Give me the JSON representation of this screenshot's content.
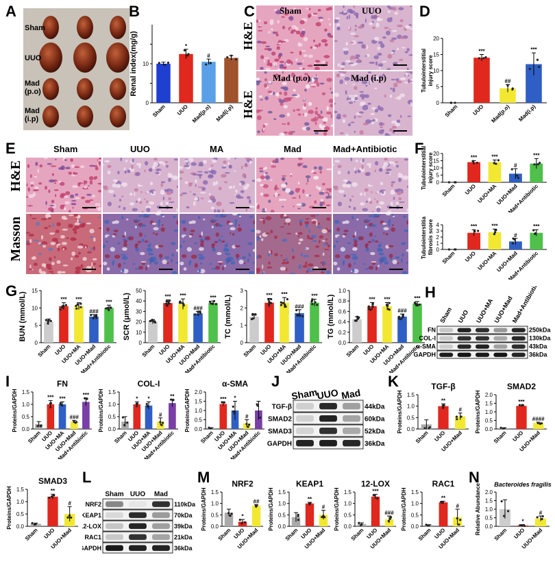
{
  "panels": {
    "A": {
      "letter": "A",
      "rows": [
        "Sham",
        "UUO",
        "Mad (p.o)",
        "Mad (i.p)"
      ]
    },
    "B": {
      "letter": "B"
    },
    "C": {
      "letter": "C",
      "stain": "H&E",
      "cols": [
        "Sham",
        "UUO",
        "Mad (p.o)",
        "Mad (i.p)"
      ]
    },
    "D": {
      "letter": "D"
    },
    "E": {
      "letter": "E",
      "cols": [
        "Sham",
        "UUO",
        "MA",
        "Mad",
        "Mad+Antibiotic"
      ],
      "rows": [
        "H&E",
        "Masson"
      ]
    },
    "F": {
      "letter": "F"
    },
    "G": {
      "letter": "G"
    },
    "H": {
      "letter": "H",
      "lanes": [
        "Sham",
        "UUO",
        "UUO+MA",
        "UUO+Mad",
        "Mad+Antibiotic"
      ],
      "bands": [
        "FN",
        "COL-I",
        "α-SMA",
        "GAPDH"
      ],
      "kda": [
        "250kDa",
        "130kDa",
        "43kDa",
        "36kDa"
      ]
    },
    "I": {
      "letter": "I"
    },
    "J": {
      "letter": "J",
      "lanes": [
        "Sham",
        "UUO",
        "Mad"
      ],
      "bands": [
        "TGF-β",
        "SMAD2",
        "SMAD3",
        "GAPDH"
      ],
      "kda": [
        "44kDa",
        "60kDa",
        "52kDa",
        "36kDa"
      ]
    },
    "K": {
      "letter": "K"
    },
    "L": {
      "letter": "L",
      "lanes": [
        "Sham",
        "UUO",
        "Mad"
      ],
      "bands": [
        "NRF2",
        "KEAP1",
        "12-LOX",
        "RAC1",
        "GAPDH"
      ],
      "kda": [
        "110kDa",
        "70kDa",
        "39kDa",
        "21kDa",
        "36kDa"
      ]
    },
    "M": {
      "letter": "M"
    },
    "N": {
      "letter": "N"
    }
  },
  "colors": {
    "sham": "#c8c8c8",
    "uuo": "#e0281e",
    "ma": "#f2e832",
    "mad": "#2f5fc4",
    "abx": "#4fc04a",
    "ma_purple": "#7a3fa6",
    "he_pink": "#d98aa8",
    "masson_blue": "#4a6fb3"
  },
  "chart_data": [
    {
      "id": "B",
      "type": "bar",
      "title": "",
      "ylabel": "Renal index(mg/g)",
      "categories": [
        "Sham",
        "UUO",
        "Mad(p.o)",
        "Mad(i.p)"
      ],
      "values": [
        10,
        12.5,
        10.5,
        11.5
      ],
      "errors": [
        0.4,
        1.2,
        0.7,
        0.6
      ],
      "colors": [
        "#1f3fd0",
        "#e0281e",
        "#5aa0e8",
        "#a0522d"
      ],
      "sig": [
        "",
        "*",
        "#",
        ""
      ],
      "yticks": [
        0,
        5,
        10,
        15
      ],
      "ylim": [
        0,
        20
      ],
      "ticklabels": [
        "0",
        "",
        "10",
        ""
      ]
    },
    {
      "id": "D",
      "type": "bar",
      "ylabel": "Tubulointerstitial injury score",
      "categories": [
        "Sham",
        "UUO",
        "Mad(p.o)",
        "Mad(i.p)"
      ],
      "values": [
        0,
        14,
        4.5,
        12
      ],
      "errors": [
        0,
        1,
        1.2,
        3.5
      ],
      "colors": [
        "#aaaaaa",
        "#e0281e",
        "#f2e832",
        "#2f5fc4"
      ],
      "sig": [
        "",
        "***",
        "##",
        "***"
      ],
      "yticks": [
        0,
        5,
        10,
        15,
        20
      ],
      "ylim": [
        0,
        20
      ],
      "ticklabels": [
        "0",
        "5",
        "10",
        "15",
        "20"
      ]
    },
    {
      "id": "F1",
      "type": "bar",
      "ylabel": "Tubulointerstitial injury score",
      "categories": [
        "Sham",
        "UUO",
        "UUO+MA",
        "UUO+Mad",
        "Mad+Antibiotic"
      ],
      "values": [
        0,
        14,
        14,
        6,
        13
      ],
      "errors": [
        0,
        1,
        1.5,
        3.5,
        3.5
      ],
      "colors": [
        "#cccccc",
        "#e0281e",
        "#f2e832",
        "#2f5fc4",
        "#4fc04a"
      ],
      "sig": [
        "",
        "***",
        "***",
        "#",
        "***"
      ],
      "yticks": [
        0,
        5,
        10,
        15,
        20
      ],
      "ylim": [
        0,
        20
      ],
      "ticklabels": [
        "0",
        "5",
        "10",
        "15",
        "20"
      ]
    },
    {
      "id": "F2",
      "type": "bar",
      "ylabel": "Tubulointerstitial fibrosis score",
      "categories": [
        "Sham",
        "UUO",
        "UUO+MA",
        "UUO+Mad",
        "Mad+Antibiotic"
      ],
      "values": [
        0,
        2.7,
        2.8,
        1.3,
        2.7
      ],
      "errors": [
        0,
        0.5,
        0.5,
        0.5,
        0.5
      ],
      "colors": [
        "#cccccc",
        "#e0281e",
        "#f2e832",
        "#2f5fc4",
        "#4fc04a"
      ],
      "sig": [
        "",
        "***",
        "***",
        "#",
        "***"
      ],
      "yticks": [
        0,
        1,
        2,
        3,
        4
      ],
      "ylim": [
        0,
        4
      ],
      "ticklabels": [
        "0",
        "1",
        "2",
        "3",
        "4"
      ]
    },
    {
      "id": "G1",
      "type": "bar",
      "ylabel": "BUN (mmol/L)",
      "categories": [
        "Sham",
        "UUO",
        "UUO+MA",
        "UUO+Mad",
        "Mad+Antibiotic"
      ],
      "values": [
        6,
        10.5,
        10.5,
        7.5,
        10
      ],
      "errors": [
        0.8,
        1,
        1,
        0.6,
        0.8
      ],
      "colors": [
        "#cccccc",
        "#e0281e",
        "#f2e832",
        "#2f5fc4",
        "#4fc04a"
      ],
      "sig": [
        "",
        "***",
        "***",
        "###",
        "***"
      ],
      "yticks": [
        0,
        5,
        10,
        15
      ],
      "ylim": [
        0,
        15
      ],
      "ticklabels": [
        "0",
        "5",
        "10",
        "15"
      ]
    },
    {
      "id": "G2",
      "type": "bar",
      "ylabel": "SCR (μmol/L)",
      "categories": [
        "Sham",
        "UUO",
        "UUO+MA",
        "UUO+Mad",
        "Mad+Antibiotic"
      ],
      "values": [
        20,
        38,
        37,
        28,
        38
      ],
      "errors": [
        2,
        3,
        5,
        2,
        2
      ],
      "colors": [
        "#cccccc",
        "#e0281e",
        "#f2e832",
        "#2f5fc4",
        "#4fc04a"
      ],
      "sig": [
        "",
        "***",
        "***",
        "###",
        "***"
      ],
      "yticks": [
        0,
        10,
        20,
        30,
        40,
        50
      ],
      "ylim": [
        0,
        50
      ],
      "ticklabels": [
        "0",
        "10",
        "20",
        "30",
        "40",
        "50"
      ]
    },
    {
      "id": "G3",
      "type": "bar",
      "ylabel": "TC (mmol/L)",
      "categories": [
        "Sham",
        "UUO",
        "UUO+MA",
        "UUO+Mad",
        "Mad+Antibiotic"
      ],
      "values": [
        1.5,
        2.3,
        2.3,
        1.7,
        2.3
      ],
      "errors": [
        0.15,
        0.25,
        0.3,
        0.2,
        0.2
      ],
      "colors": [
        "#cccccc",
        "#e0281e",
        "#f2e832",
        "#2f5fc4",
        "#4fc04a"
      ],
      "sig": [
        "",
        "***",
        "***",
        "###",
        "***"
      ],
      "yticks": [
        0,
        1,
        2,
        3
      ],
      "ylim": [
        0,
        3
      ],
      "ticklabels": [
        "0",
        "1",
        "2",
        "3"
      ]
    },
    {
      "id": "G4",
      "type": "bar",
      "ylabel": "TG (mmol/L)",
      "categories": [
        "Sham",
        "UUO",
        "UUO+MA",
        "UUO+Mad",
        "Mad+Antibiotic"
      ],
      "values": [
        0.45,
        0.7,
        0.7,
        0.5,
        0.75
      ],
      "errors": [
        0.05,
        0.07,
        0.07,
        0.05,
        0.04
      ],
      "colors": [
        "#cccccc",
        "#e0281e",
        "#f2e832",
        "#2f5fc4",
        "#4fc04a"
      ],
      "sig": [
        "",
        "***",
        "***",
        "###",
        "***"
      ],
      "yticks": [
        0,
        0.2,
        0.4,
        0.6,
        0.8,
        1.0
      ],
      "ylim": [
        0,
        1.0
      ],
      "ticklabels": [
        "0.0",
        "0.2",
        "0.4",
        "0.6",
        "0.8",
        "1.0"
      ]
    },
    {
      "id": "I1",
      "type": "bar",
      "title": "FN",
      "ylabel": "Proteins/GAPDH",
      "categories": [
        "Sham",
        "UUO",
        "UUO+MA",
        "UUO+Mad",
        "Mad+Antibiotic"
      ],
      "values": [
        0.2,
        1.0,
        1.0,
        0.3,
        1.1
      ],
      "errors": [
        0.1,
        0.15,
        0.1,
        0.05,
        0.15
      ],
      "colors": [
        "#aaaaaa",
        "#e0281e",
        "#2f5fc4",
        "#f2e832",
        "#7a3fa6"
      ],
      "sig": [
        "",
        "***",
        "***",
        "###",
        "***"
      ],
      "yticks": [
        0,
        0.5,
        1.0,
        1.5
      ],
      "ylim": [
        0,
        1.5
      ],
      "ticklabels": [
        "0.0",
        "0.5",
        "1.0",
        "1.5"
      ]
    },
    {
      "id": "I2",
      "type": "bar",
      "title": "COL-I",
      "ylabel": "Proteins/GAPDH",
      "categories": [
        "Sham",
        "UUO",
        "UUO+MA",
        "UUO+Mad",
        "Mad+Antibiotic"
      ],
      "values": [
        0.3,
        1.0,
        0.95,
        0.3,
        1.05
      ],
      "errors": [
        0.2,
        0.1,
        0.15,
        0.15,
        0.15
      ],
      "colors": [
        "#aaaaaa",
        "#e0281e",
        "#2f5fc4",
        "#f2e832",
        "#7a3fa6"
      ],
      "sig": [
        "",
        "*",
        "*",
        "#",
        "**"
      ],
      "yticks": [
        0,
        0.5,
        1.0,
        1.5
      ],
      "ylim": [
        0,
        1.5
      ],
      "ticklabels": [
        "0.0",
        "0.5",
        "1.0",
        "1.5"
      ]
    },
    {
      "id": "I3",
      "type": "bar",
      "title": "α-SMA",
      "ylabel": "Proteins/GAPDH",
      "categories": [
        "Sham",
        "UUO",
        "UUO+MA",
        "UUO+Mad",
        "Mad+Antibiotic"
      ],
      "values": [
        0.05,
        1.35,
        1.0,
        0.3,
        1.0
      ],
      "errors": [
        0.02,
        0.1,
        0.5,
        0.2,
        0.5
      ],
      "colors": [
        "#aaaaaa",
        "#e0281e",
        "#2f5fc4",
        "#f2e832",
        "#7a3fa6"
      ],
      "sig": [
        "",
        "***",
        "*",
        "#",
        ""
      ],
      "yticks": [
        0,
        0.5,
        1.0,
        1.5,
        2.0
      ],
      "ylim": [
        0,
        2.0
      ],
      "ticklabels": [
        "0.0",
        "0.5",
        "1.0",
        "1.5",
        "2.0"
      ]
    },
    {
      "id": "K1",
      "type": "bar",
      "title": "TGF-β",
      "ylabel": "Proteins/GAPDH",
      "categories": [
        "Sham",
        "UUO",
        "UUO+Mad"
      ],
      "values": [
        0.2,
        1.0,
        0.55
      ],
      "errors": [
        0.2,
        0.1,
        0.15
      ],
      "colors": [
        "#aaaaaa",
        "#e0281e",
        "#f2e832"
      ],
      "sig": [
        "",
        "**",
        "#"
      ],
      "yticks": [
        0,
        0.5,
        1.0,
        1.5
      ],
      "ylim": [
        0,
        1.5
      ],
      "ticklabels": [
        "0.0",
        "0.5",
        "1.0",
        "1.5"
      ]
    },
    {
      "id": "K2",
      "type": "bar",
      "title": "SMAD2",
      "ylabel": "Proteins/GAPDH",
      "categories": [
        "Sham",
        "UUO",
        "UUO+Mad"
      ],
      "values": [
        0.05,
        1.35,
        0.35
      ],
      "errors": [
        0.02,
        0.05,
        0.05
      ],
      "colors": [
        "#aaaaaa",
        "#e0281e",
        "#f2e832"
      ],
      "sig": [
        "",
        "***",
        "####"
      ],
      "yticks": [
        0,
        0.5,
        1.0,
        1.5,
        2.0
      ],
      "ylim": [
        0,
        2.0
      ],
      "ticklabels": [
        "0.0",
        "0.5",
        "1.0",
        "1.5",
        "2.0"
      ]
    },
    {
      "id": "K3",
      "type": "bar",
      "title": "SMAD3",
      "ylabel": "Proteins/GAPDH",
      "categories": [
        "Sham",
        "UUO",
        "UUO+Mad"
      ],
      "values": [
        0.1,
        1.2,
        0.5
      ],
      "errors": [
        0.03,
        0.1,
        0.3
      ],
      "colors": [
        "#aaaaaa",
        "#e0281e",
        "#f2e832"
      ],
      "sig": [
        "",
        "**",
        "#"
      ],
      "yticks": [
        0,
        0.5,
        1.0,
        1.5
      ],
      "ylim": [
        0,
        1.5
      ],
      "ticklabels": [
        "0.0",
        "0.5",
        "1.0",
        "1.5"
      ]
    },
    {
      "id": "M1",
      "type": "bar",
      "title": "NRF2",
      "ylabel": "Proteins/GAPDH",
      "categories": [
        "Sham",
        "UUO",
        "UUO+Mad"
      ],
      "values": [
        0.6,
        0.2,
        0.9
      ],
      "errors": [
        0.15,
        0.1,
        0.05
      ],
      "colors": [
        "#aaaaaa",
        "#e0281e",
        "#f2e832"
      ],
      "sig": [
        "",
        "*",
        "##"
      ],
      "yticks": [
        0,
        0.5,
        1.0,
        1.5
      ],
      "ylim": [
        0,
        1.5
      ],
      "ticklabels": [
        "0.0",
        "0.5",
        "1.0",
        "1.5"
      ]
    },
    {
      "id": "M2",
      "type": "bar",
      "title": "KEAP1",
      "ylabel": "Proteins/GAPDH",
      "categories": [
        "Sham",
        "UUO",
        "UUO+Mad"
      ],
      "values": [
        0.4,
        1.0,
        0.5
      ],
      "errors": [
        0.2,
        0.05,
        0.2
      ],
      "colors": [
        "#aaaaaa",
        "#e0281e",
        "#f2e832"
      ],
      "sig": [
        "",
        "**",
        "#"
      ],
      "yticks": [
        0,
        0.5,
        1.0,
        1.5
      ],
      "ylim": [
        0,
        1.5
      ],
      "ticklabels": [
        "0.0",
        "0.5",
        "1.0",
        "1.5"
      ]
    },
    {
      "id": "M3",
      "type": "bar",
      "title": "12-LOX",
      "ylabel": "Proteins/GAPDH",
      "categories": [
        "Sham",
        "UUO",
        "UUO+Mad"
      ],
      "values": [
        0.1,
        1.3,
        0.3
      ],
      "errors": [
        0.05,
        0.1,
        0.15
      ],
      "colors": [
        "#aaaaaa",
        "#e0281e",
        "#f2e832"
      ],
      "sig": [
        "",
        "***",
        "###"
      ],
      "yticks": [
        0,
        0.5,
        1.0,
        1.5
      ],
      "ylim": [
        0,
        1.5
      ],
      "ticklabels": [
        "0.0",
        "0.5",
        "1.0",
        "1.5"
      ]
    },
    {
      "id": "M4",
      "type": "bar",
      "title": "RAC1",
      "ylabel": "Proteins/GAPDH",
      "categories": [
        "Sham",
        "UUO",
        "UUO+Mad"
      ],
      "values": [
        0.05,
        1.05,
        0.4
      ],
      "errors": [
        0.02,
        0.05,
        0.35
      ],
      "colors": [
        "#aaaaaa",
        "#e0281e",
        "#f2e832"
      ],
      "sig": [
        "",
        "**",
        "#"
      ],
      "yticks": [
        0,
        0.5,
        1.0,
        1.5
      ],
      "ylim": [
        0,
        1.5
      ],
      "ticklabels": [
        "0.0",
        "0.5",
        "1.0",
        "1.5"
      ]
    },
    {
      "id": "N",
      "type": "bar",
      "title": "Bacteroides fragilis",
      "ylabel": "Relative Abundance",
      "categories": [
        "Sham",
        "UUO",
        "UUO+Mad"
      ],
      "values": [
        1.0,
        0.05,
        0.45
      ],
      "errors": [
        0.55,
        0.05,
        0.15
      ],
      "colors": [
        "#cccccc",
        "#e0281e",
        "#f2e832"
      ],
      "sig": [
        "",
        "*",
        "#"
      ],
      "yticks": [
        0,
        0.5,
        1.0,
        1.5,
        2.0
      ],
      "ylim": [
        0,
        2.0
      ],
      "ticklabels": [
        "0.0",
        "0.5",
        "1.0",
        "1.5",
        "2.0"
      ]
    }
  ]
}
